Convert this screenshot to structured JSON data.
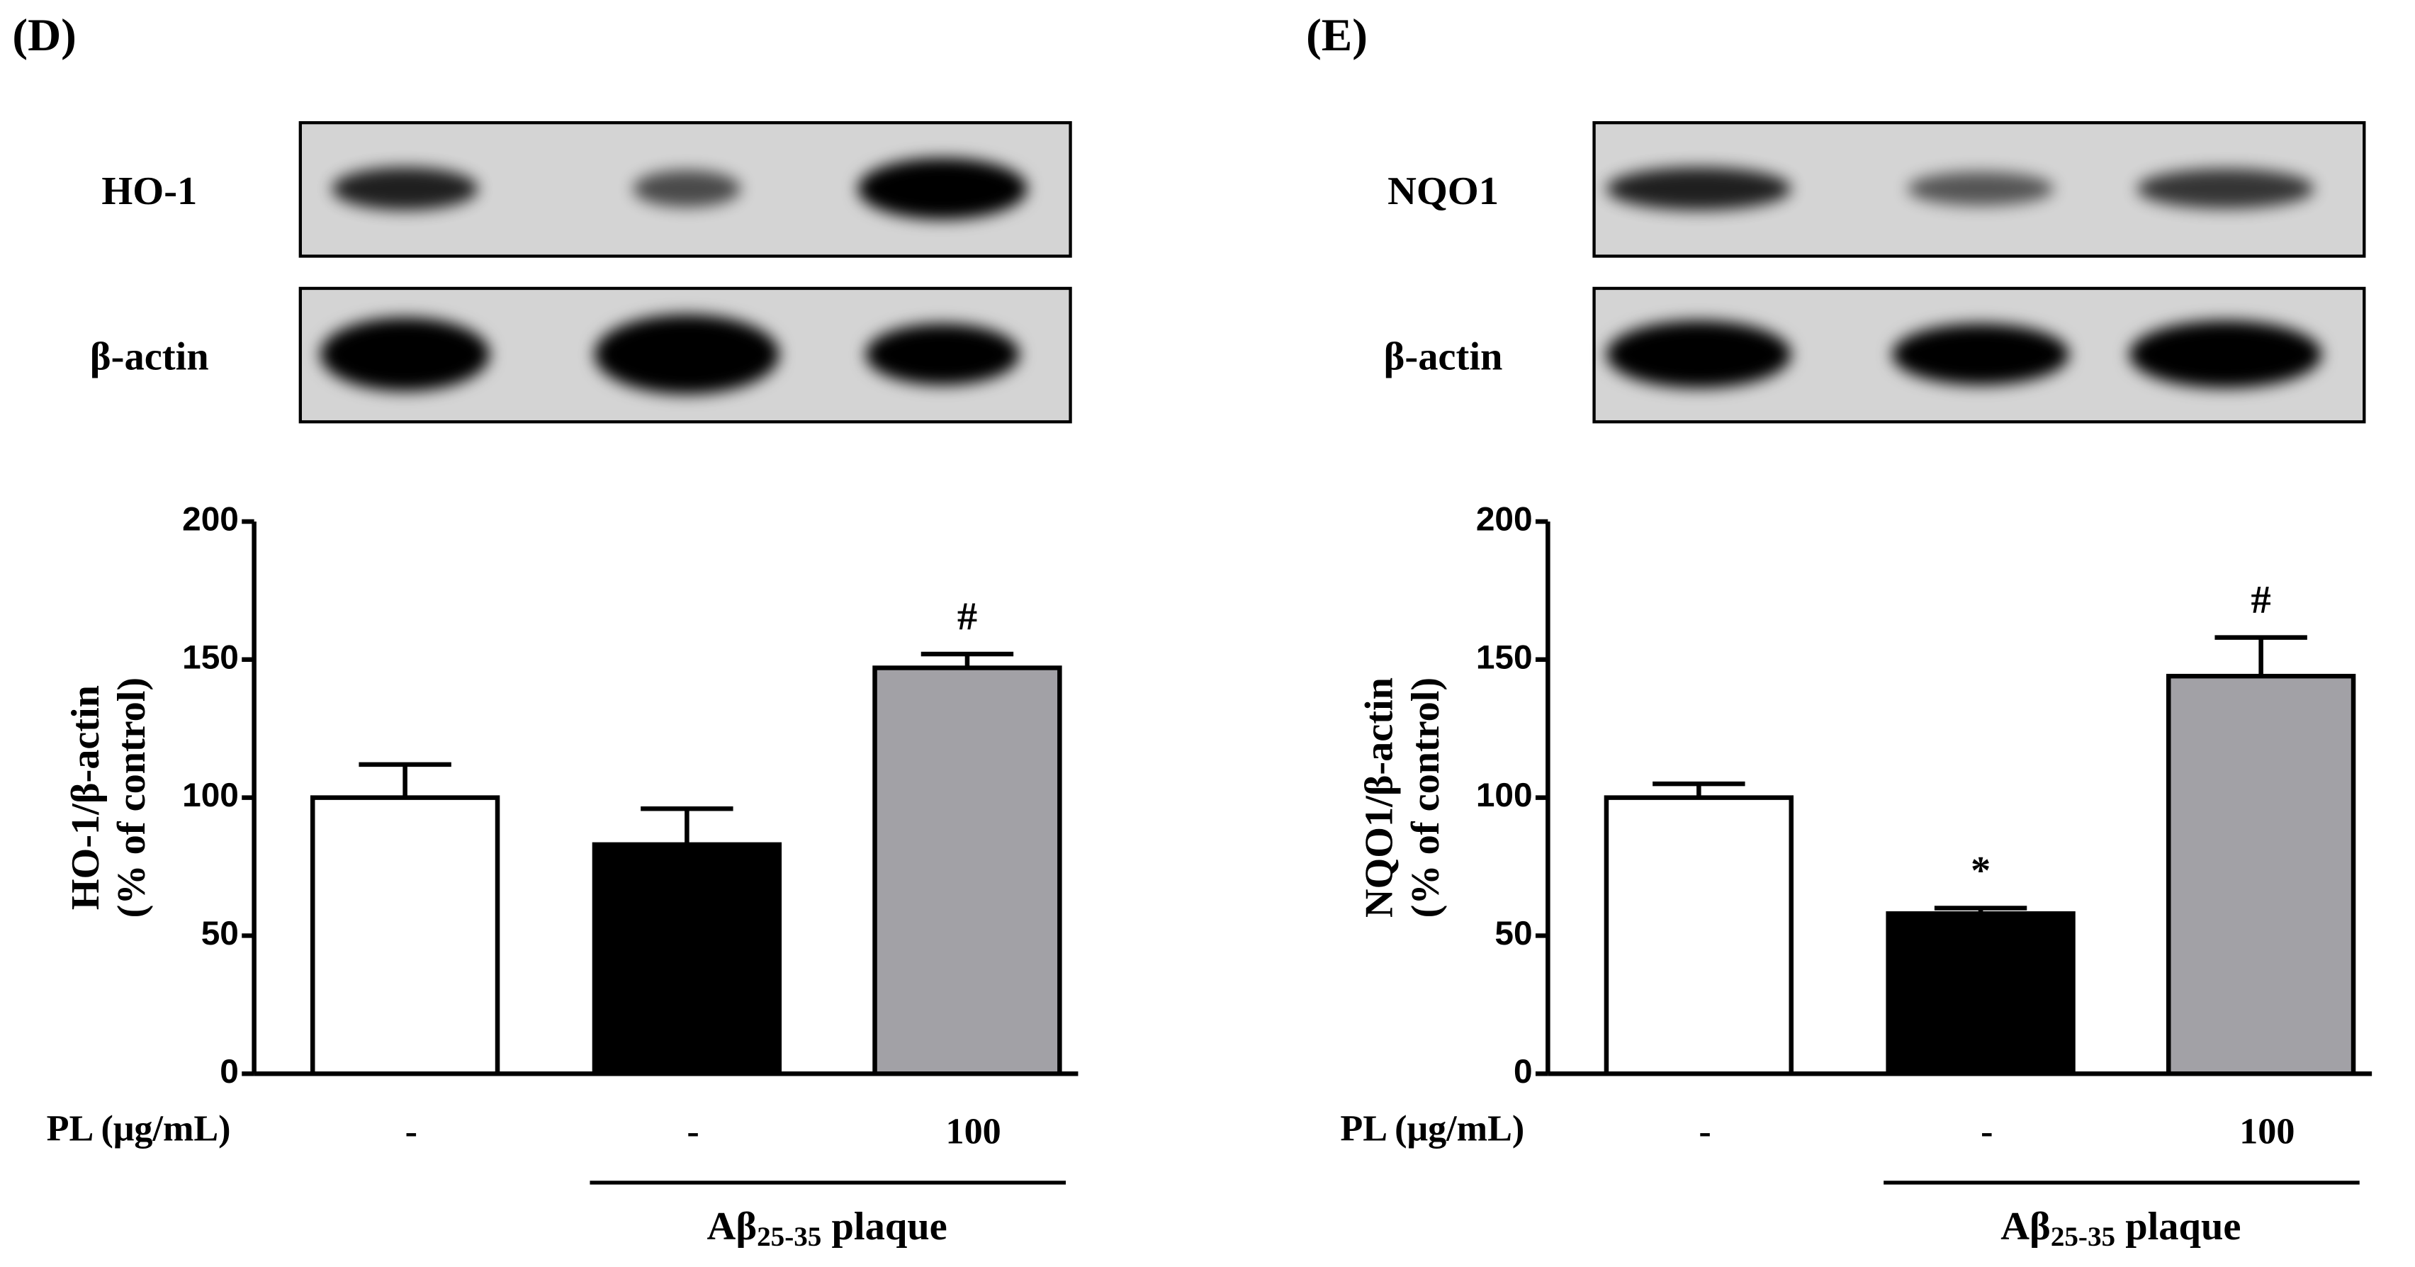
{
  "chart_data": [
    {
      "type": "bar",
      "panel_label": "(D)",
      "blot_labels": [
        "HO-1",
        "β-actin"
      ],
      "y_label": [
        "HO-1/β-actin",
        "(% of control)"
      ],
      "row_label": "PL (μg/mL)",
      "categories": [
        "-",
        "-",
        "100"
      ],
      "values": [
        100,
        83,
        147
      ],
      "errors": [
        12,
        13,
        5
      ],
      "colors": [
        "#ffffff",
        "#000000",
        "#a2a1a6"
      ],
      "annotations": [
        {
          "index": 2,
          "text": "#"
        }
      ],
      "group_label": {
        "main": "Aβ",
        "sub": "25-35",
        "rest": " plaque"
      },
      "ylim": [
        0,
        200
      ],
      "yticks": [
        0,
        50,
        100,
        150,
        200
      ]
    },
    {
      "type": "bar",
      "panel_label": "(E)",
      "blot_labels": [
        "NQO1",
        "β-actin"
      ],
      "y_label": [
        "NQO1/β-actin",
        "(% of control)"
      ],
      "row_label": "PL (μg/mL)",
      "categories": [
        "-",
        "-",
        "100"
      ],
      "values": [
        100,
        58,
        144
      ],
      "errors": [
        5,
        2,
        14
      ],
      "colors": [
        "#ffffff",
        "#000000",
        "#a2a1a6"
      ],
      "annotations": [
        {
          "index": 1,
          "text": "*"
        },
        {
          "index": 2,
          "text": "#"
        }
      ],
      "group_label": {
        "main": "Aβ",
        "sub": "25-35",
        "rest": " plaque"
      },
      "ylim": [
        0,
        200
      ],
      "yticks": [
        0,
        50,
        100,
        150,
        200
      ]
    }
  ]
}
